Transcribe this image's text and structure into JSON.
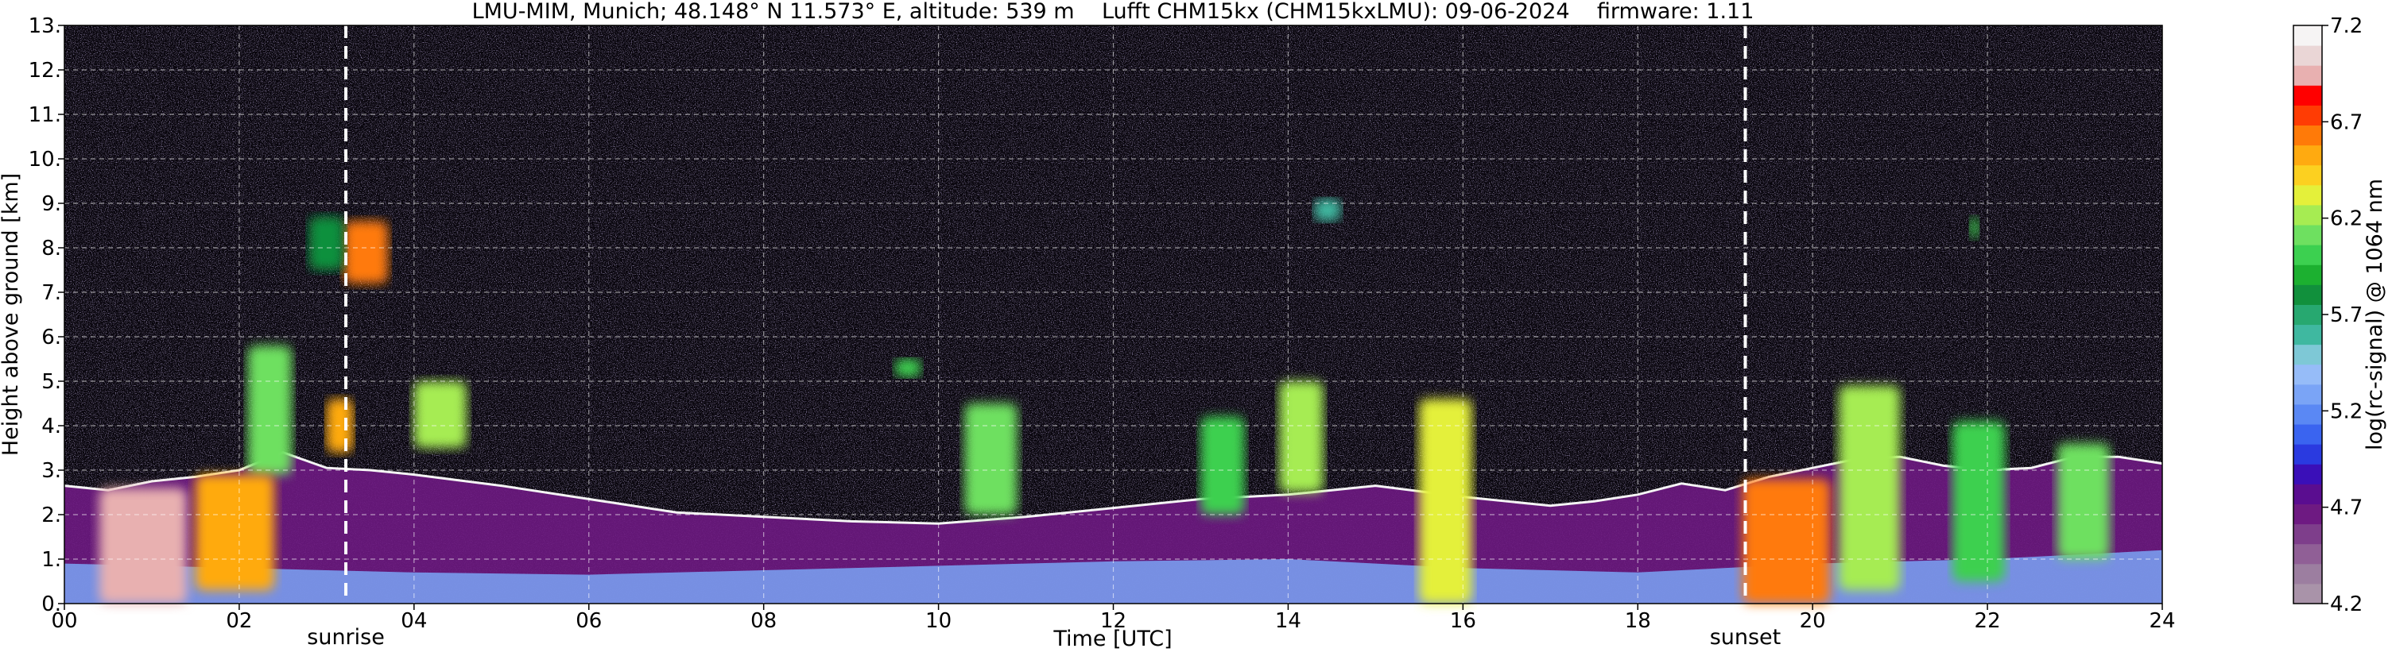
{
  "chart_data": {
    "type": "heatmap",
    "title": "LMU-MIM, Munich; 48.148° N 11.573° E, altitude: 539 m    Lufft CHM15kx (CHM15kxLMU): 09-06-2024    firmware: 1.11",
    "xlabel": "Time [UTC]",
    "ylabel": "Height above ground [km]",
    "xlim": [
      0,
      24
    ],
    "ylim": [
      0,
      13
    ],
    "x_ticks": [
      "00",
      "02",
      "04",
      "06",
      "08",
      "10",
      "12",
      "14",
      "16",
      "18",
      "20",
      "22",
      "24"
    ],
    "y_ticks": [
      "0.",
      "1.",
      "2.",
      "3.",
      "4.",
      "5.",
      "6.",
      "7.",
      "8.",
      "9.",
      "10.",
      "11.",
      "12.",
      "13."
    ],
    "grid": true,
    "events": [
      {
        "label": "sunrise",
        "time": 3.22
      },
      {
        "label": "sunset",
        "time": 19.23
      }
    ],
    "colorbar": {
      "label": "log(rc-signal) @ 1064 nm",
      "range": [
        4.2,
        7.2
      ],
      "ticks": [
        "4.2",
        "4.7",
        "5.2",
        "5.7",
        "6.2",
        "6.7",
        "7.2"
      ],
      "colors": [
        "#a993a9",
        "#9c7ea0",
        "#905f96",
        "#7e3e8b",
        "#6e1a82",
        "#5a0d90",
        "#3a0fb8",
        "#2a3ae0",
        "#3a64f0",
        "#5a88f4",
        "#7aa4f6",
        "#96bcf8",
        "#7ec8d6",
        "#3fb8a0",
        "#27a870",
        "#11903c",
        "#1cb030",
        "#3cd050",
        "#6ee060",
        "#a6ec52",
        "#e4f03a",
        "#fcd020",
        "#ffaa10",
        "#ff7a08",
        "#ff3c04",
        "#ff0000",
        "#e8b0b0",
        "#ead6d6",
        "#f6f4f4"
      ]
    },
    "layers": [
      {
        "name": "boundary-layer",
        "points": [
          [
            0.0,
            2.65
          ],
          [
            0.5,
            2.55
          ],
          [
            1.0,
            2.75
          ],
          [
            1.5,
            2.85
          ],
          [
            2.0,
            3.0
          ],
          [
            2.5,
            3.4
          ],
          [
            3.0,
            3.05
          ],
          [
            3.5,
            3.0
          ],
          [
            4.0,
            2.9
          ],
          [
            5.0,
            2.65
          ],
          [
            6.0,
            2.35
          ],
          [
            7.0,
            2.05
          ],
          [
            8.0,
            1.95
          ],
          [
            9.0,
            1.85
          ],
          [
            10.0,
            1.8
          ],
          [
            11.0,
            1.95
          ],
          [
            12.0,
            2.15
          ],
          [
            13.0,
            2.35
          ],
          [
            14.0,
            2.45
          ],
          [
            15.0,
            2.65
          ],
          [
            16.0,
            2.4
          ],
          [
            17.0,
            2.2
          ],
          [
            17.5,
            2.3
          ],
          [
            18.0,
            2.45
          ],
          [
            18.5,
            2.7
          ],
          [
            19.0,
            2.55
          ],
          [
            19.5,
            2.85
          ],
          [
            20.0,
            3.05
          ],
          [
            20.5,
            3.25
          ],
          [
            21.0,
            3.3
          ],
          [
            21.5,
            3.1
          ],
          [
            22.0,
            3.0
          ],
          [
            22.5,
            3.05
          ],
          [
            23.0,
            3.3
          ],
          [
            23.5,
            3.3
          ],
          [
            24.0,
            3.15
          ]
        ]
      },
      {
        "name": "near-surface",
        "points": [
          [
            0.0,
            0.9
          ],
          [
            2.0,
            0.8
          ],
          [
            4.0,
            0.7
          ],
          [
            6.0,
            0.65
          ],
          [
            8.0,
            0.75
          ],
          [
            10.0,
            0.85
          ],
          [
            12.0,
            0.95
          ],
          [
            14.0,
            1.0
          ],
          [
            16.0,
            0.8
          ],
          [
            18.0,
            0.7
          ],
          [
            20.0,
            0.9
          ],
          [
            22.0,
            1.0
          ],
          [
            24.0,
            1.2
          ]
        ]
      }
    ],
    "clouds": [
      {
        "time": [
          3.2,
          3.7
        ],
        "height": [
          7.2,
          8.6
        ],
        "intensity": 6.6
      },
      {
        "time": [
          2.8,
          3.2
        ],
        "height": [
          7.5,
          8.7
        ],
        "intensity": 5.8
      },
      {
        "time": [
          3.0,
          3.3
        ],
        "height": [
          3.4,
          4.6
        ],
        "intensity": 6.5
      },
      {
        "time": [
          2.1,
          2.6
        ],
        "height": [
          2.9,
          5.8
        ],
        "intensity": 6.1
      },
      {
        "time": [
          4.0,
          4.6
        ],
        "height": [
          3.5,
          5.0
        ],
        "intensity": 6.2
      },
      {
        "time": [
          0.4,
          1.4
        ],
        "height": [
          0.0,
          2.6
        ],
        "intensity": 6.9
      },
      {
        "time": [
          1.5,
          2.4
        ],
        "height": [
          0.3,
          2.9
        ],
        "intensity": 6.5
      },
      {
        "time": [
          10.3,
          10.9
        ],
        "height": [
          2.0,
          4.5
        ],
        "intensity": 6.1
      },
      {
        "time": [
          13.0,
          13.5
        ],
        "height": [
          2.0,
          4.2
        ],
        "intensity": 6.0
      },
      {
        "time": [
          13.9,
          14.4
        ],
        "height": [
          2.5,
          5.0
        ],
        "intensity": 6.2
      },
      {
        "time": [
          15.5,
          16.1
        ],
        "height": [
          0.0,
          4.6
        ],
        "intensity": 6.3
      },
      {
        "time": [
          19.2,
          20.2
        ],
        "height": [
          0.0,
          2.8
        ],
        "intensity": 6.6
      },
      {
        "time": [
          20.3,
          21.0
        ],
        "height": [
          0.3,
          4.9
        ],
        "intensity": 6.2
      },
      {
        "time": [
          21.6,
          22.2
        ],
        "height": [
          0.5,
          4.1
        ],
        "intensity": 6.0
      },
      {
        "time": [
          22.8,
          23.4
        ],
        "height": [
          1.0,
          3.6
        ],
        "intensity": 6.1
      },
      {
        "time": [
          21.8,
          21.9
        ],
        "height": [
          8.2,
          8.7
        ],
        "intensity": 6.0
      },
      {
        "time": [
          14.3,
          14.6
        ],
        "height": [
          8.6,
          9.1
        ],
        "intensity": 5.6
      },
      {
        "time": [
          9.5,
          9.8
        ],
        "height": [
          5.1,
          5.5
        ],
        "intensity": 6.0
      }
    ]
  }
}
